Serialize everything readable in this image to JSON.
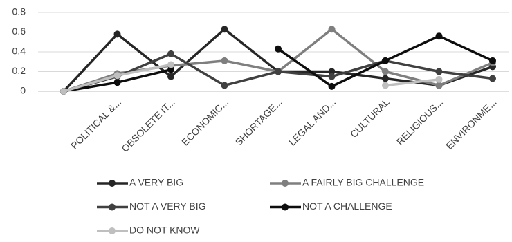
{
  "chart_data": {
    "type": "line",
    "categories": [
      null,
      "POLITICAL &...",
      "OBSOLETE IT...",
      "ECONOMIC...",
      "SHORTAGE...",
      "LEGAL AND...",
      "CULTURAL",
      "RELIGIOUS...",
      "ENVIRONME..."
    ],
    "series": [
      {
        "name": "A VERY BIG",
        "color": "#262626",
        "values": [
          0,
          0.58,
          0.15,
          0.63,
          0.2,
          0.2,
          0.13,
          0.06,
          0.25
        ]
      },
      {
        "name": "A FAIRLY BIG CHALLENGE",
        "color": "#7f7f7f",
        "values": [
          0,
          0.18,
          0.26,
          0.31,
          0.2,
          0.63,
          0.2,
          0.06,
          0.29
        ]
      },
      {
        "name": "NOT A VERY BIG",
        "color": "#404040",
        "values": [
          0,
          0.15,
          0.38,
          0.06,
          0.2,
          0.15,
          0.31,
          0.2,
          0.13
        ]
      },
      {
        "name": "NOT A CHALLENGE",
        "color": "#0d0d0d",
        "values": [
          0,
          0.09,
          0.22,
          null,
          0.43,
          0.05,
          0.31,
          0.56,
          0.31
        ]
      },
      {
        "name": "DO NOT KNOW",
        "color": "#bfbfbf",
        "values": [
          0,
          0.16,
          0.27,
          null,
          null,
          null,
          0.06,
          0.12,
          null
        ]
      }
    ],
    "ylim": [
      0,
      0.8
    ],
    "yticks": [
      0,
      0.2,
      0.4,
      0.6,
      0.8
    ],
    "grid": true,
    "legend": "bottom"
  }
}
